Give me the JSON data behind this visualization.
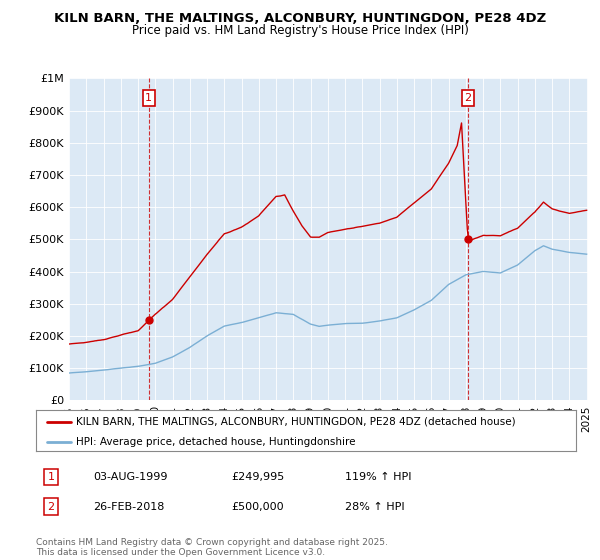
{
  "title": "KILN BARN, THE MALTINGS, ALCONBURY, HUNTINGDON, PE28 4DZ",
  "subtitle": "Price paid vs. HM Land Registry's House Price Index (HPI)",
  "legend_entry1": "KILN BARN, THE MALTINGS, ALCONBURY, HUNTINGDON, PE28 4DZ (detached house)",
  "legend_entry2": "HPI: Average price, detached house, Huntingdonshire",
  "sale1_date": "03-AUG-1999",
  "sale1_price": 249995,
  "sale1_hpi": "119% ↑ HPI",
  "sale1_label": "1",
  "sale2_date": "26-FEB-2018",
  "sale2_price": 500000,
  "sale2_hpi": "28% ↑ HPI",
  "sale2_label": "2",
  "footnote": "Contains HM Land Registry data © Crown copyright and database right 2025.\nThis data is licensed under the Open Government Licence v3.0.",
  "red_color": "#cc0000",
  "blue_color": "#7bafd4",
  "plot_bg": "#dce9f5",
  "background_color": "#ffffff",
  "grid_color": "#ffffff",
  "ylim_max": 1000000,
  "yticks": [
    0,
    100000,
    200000,
    300000,
    400000,
    500000,
    600000,
    700000,
    800000,
    900000,
    1000000
  ],
  "ytick_labels": [
    "£0",
    "£100K",
    "£200K",
    "£300K",
    "£400K",
    "£500K",
    "£600K",
    "£700K",
    "£800K",
    "£900K",
    "£1M"
  ],
  "sale1_t": 1999.625,
  "sale2_t": 2018.125,
  "hpi_nodes_t": [
    1995.0,
    1996.0,
    1997.0,
    1998.0,
    1999.0,
    2000.0,
    2001.0,
    2002.0,
    2003.0,
    2004.0,
    2005.0,
    2006.0,
    2007.0,
    2008.0,
    2009.0,
    2009.5,
    2010.0,
    2011.0,
    2012.0,
    2013.0,
    2014.0,
    2015.0,
    2016.0,
    2017.0,
    2018.0,
    2019.0,
    2020.0,
    2021.0,
    2022.0,
    2022.5,
    2023.0,
    2024.0,
    2025.0
  ],
  "hpi_nodes_v": [
    85000,
    88000,
    93000,
    99000,
    105000,
    115000,
    135000,
    165000,
    200000,
    230000,
    240000,
    255000,
    270000,
    265000,
    235000,
    228000,
    232000,
    238000,
    238000,
    245000,
    255000,
    280000,
    310000,
    360000,
    390000,
    400000,
    395000,
    420000,
    465000,
    480000,
    470000,
    460000,
    455000
  ],
  "red_nodes_t": [
    1995.0,
    1996.0,
    1997.0,
    1998.0,
    1999.0,
    1999.625,
    2000.0,
    2001.0,
    2002.0,
    2003.0,
    2004.0,
    2005.0,
    2006.0,
    2007.0,
    2007.5,
    2008.0,
    2008.5,
    2009.0,
    2009.5,
    2010.0,
    2011.0,
    2012.0,
    2013.0,
    2014.0,
    2015.0,
    2016.0,
    2017.0,
    2017.5,
    2017.75,
    2018.125,
    2018.5,
    2019.0,
    2020.0,
    2021.0,
    2022.0,
    2022.5,
    2023.0,
    2024.0,
    2025.0
  ],
  "red_nodes_v": [
    175000,
    180000,
    190000,
    205000,
    218000,
    249995,
    268000,
    315000,
    385000,
    455000,
    520000,
    540000,
    575000,
    635000,
    640000,
    590000,
    545000,
    510000,
    510000,
    525000,
    535000,
    545000,
    555000,
    575000,
    620000,
    665000,
    745000,
    800000,
    870000,
    500000,
    510000,
    520000,
    520000,
    545000,
    595000,
    625000,
    605000,
    590000,
    600000
  ]
}
